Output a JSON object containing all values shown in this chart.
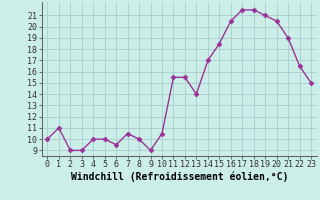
{
  "x": [
    0,
    1,
    2,
    3,
    4,
    5,
    6,
    7,
    8,
    9,
    10,
    11,
    12,
    13,
    14,
    15,
    16,
    17,
    18,
    19,
    20,
    21,
    22,
    23
  ],
  "y": [
    10,
    11,
    9,
    9,
    10,
    10,
    9.5,
    10.5,
    10,
    9,
    10.5,
    15.5,
    15.5,
    14,
    17,
    18.5,
    20.5,
    21.5,
    21.5,
    21,
    20.5,
    19,
    16.5,
    15
  ],
  "line_color": "#993399",
  "marker": "D",
  "marker_size": 2.5,
  "bg_color": "#cceee8",
  "grid_color": "#aacccc",
  "xlabel": "Windchill (Refroidissement éolien,°C)",
  "xlabel_fontsize": 7,
  "ylabel_ticks": [
    9,
    10,
    11,
    12,
    13,
    14,
    15,
    16,
    17,
    18,
    19,
    20,
    21
  ],
  "xlim": [
    -0.5,
    23.5
  ],
  "ylim": [
    8.5,
    22.2
  ],
  "xtick_labels": [
    "0",
    "1",
    "2",
    "3",
    "4",
    "5",
    "6",
    "7",
    "8",
    "9",
    "10",
    "11",
    "12",
    "13",
    "14",
    "15",
    "16",
    "17",
    "18",
    "19",
    "20",
    "21",
    "22",
    "23"
  ],
  "tick_fontsize": 6,
  "line_width": 1.0
}
